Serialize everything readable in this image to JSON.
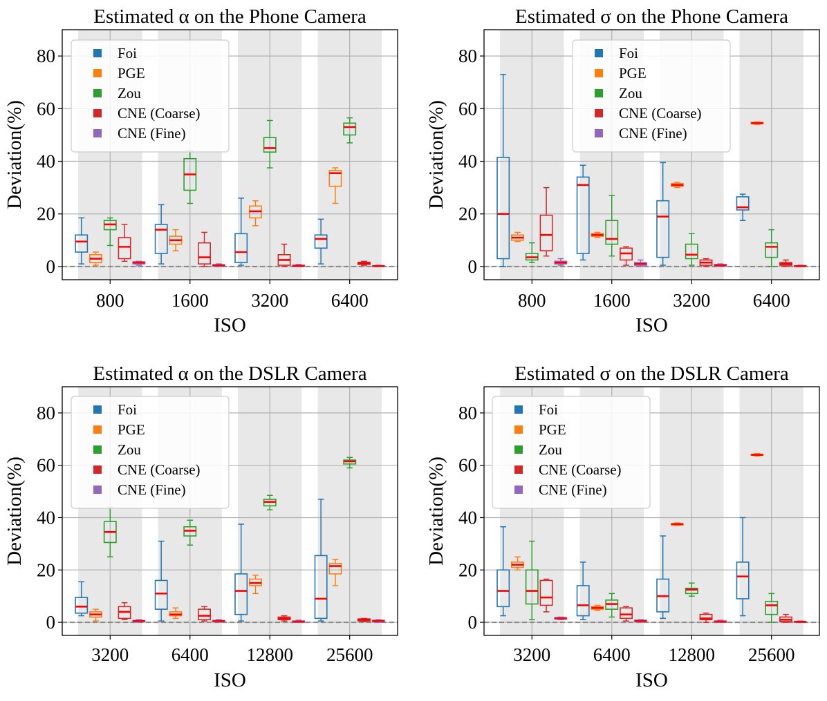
{
  "chart_data": {
    "type": "box",
    "ylabel": "Deviation(%)",
    "xlabel": "ISO",
    "legend_labels": [
      "Foi",
      "PGE",
      "Zou",
      "CNE (Coarse)",
      "CNE (Fine)"
    ],
    "series_colors": {
      "Foi": "#1f77b4",
      "PGE": "#ff7f0e",
      "Zou": "#2ca02c",
      "CNE (Coarse)": "#d62728",
      "CNE (Fine)": "#9467bd"
    },
    "median_color": "#ff0000",
    "shade_color": "#e8e8e8",
    "ylim": [
      -5,
      90
    ],
    "yticks": [
      0,
      20,
      40,
      60,
      80
    ],
    "panels": [
      {
        "title": "Estimated α on the Phone Camera",
        "categories": [
          "800",
          "1600",
          "3200",
          "6400"
        ],
        "legend_position": "upper-left-inset",
        "boxes": [
          [
            [
              1,
              5.5,
              9.5,
              12,
              18.5
            ],
            [
              0.5,
              1.5,
              3,
              4.5,
              5.5
            ],
            [
              8,
              14,
              16,
              17.5,
              18.5
            ],
            [
              2,
              3,
              7.5,
              11,
              16
            ],
            [
              0.5,
              1,
              1.5,
              1.8,
              2
            ]
          ],
          [
            [
              1,
              5,
              14,
              16,
              23.5
            ],
            [
              6,
              8.5,
              10,
              11.5,
              14
            ],
            [
              24,
              29,
              35,
              41,
              44
            ],
            [
              0,
              1,
              3.5,
              9,
              13
            ],
            [
              0,
              0.2,
              0.5,
              0.7,
              1
            ]
          ],
          [
            [
              0.5,
              1.5,
              5.5,
              12.5,
              26
            ],
            [
              15.5,
              18.5,
              21,
              23,
              25
            ],
            [
              37.5,
              43.5,
              45,
              49,
              55.5
            ],
            [
              0,
              0.5,
              2.5,
              4.5,
              8.5
            ],
            [
              0,
              0,
              0.3,
              0.5,
              0.8
            ]
          ],
          [
            [
              1,
              7,
              10.5,
              12,
              18
            ],
            [
              24,
              30.5,
              35.5,
              36.5,
              37.5
            ],
            [
              47,
              50,
              53,
              54.5,
              56.5
            ],
            [
              0.5,
              0.8,
              1.3,
              1.6,
              2
            ],
            [
              0,
              0,
              0.2,
              0.3,
              0.5
            ]
          ]
        ]
      },
      {
        "title": "Estimated σ on the Phone Camera",
        "categories": [
          "800",
          "1600",
          "3200",
          "6400"
        ],
        "legend_position": "upper-center-inset",
        "boxes": [
          [
            [
              0,
              3,
              20,
              41.5,
              73
            ],
            [
              9.5,
              10,
              11,
              12,
              13
            ],
            [
              1.5,
              2.5,
              3.5,
              5,
              9
            ],
            [
              4,
              6,
              12,
              19.5,
              30
            ],
            [
              0.5,
              1,
              1.5,
              2,
              3
            ]
          ],
          [
            [
              2.5,
              5,
              31,
              34,
              38.5
            ],
            [
              11,
              11.5,
              12,
              12.5,
              13
            ],
            [
              4,
              8.5,
              10.5,
              17.5,
              27
            ],
            [
              0.5,
              2.5,
              5,
              7,
              7.5
            ],
            [
              0,
              0.5,
              1,
              1.5,
              2.5
            ]
          ],
          [
            [
              0.5,
              3.5,
              19,
              25,
              39.5
            ],
            [
              30,
              30.5,
              31,
              31.5,
              32
            ],
            [
              0.5,
              3,
              4.5,
              8.5,
              12.5
            ],
            [
              0,
              0.5,
              1.5,
              2.5,
              3
            ],
            [
              0,
              0.2,
              0.5,
              0.8,
              1
            ]
          ],
          [
            [
              17.5,
              21.5,
              22.5,
              26.5,
              27.5
            ],
            [
              54,
              54.2,
              54.5,
              54.8,
              55
            ],
            [
              0,
              3.5,
              7.5,
              9,
              14
            ],
            [
              0,
              0.5,
              1,
              1.5,
              2.5
            ],
            [
              0,
              0,
              0.2,
              0.3,
              0.5
            ]
          ]
        ]
      },
      {
        "title": "Estimated α on the DSLR Camera",
        "categories": [
          "3200",
          "6400",
          "12800",
          "25600"
        ],
        "legend_position": "upper-left-inset",
        "boxes": [
          [
            [
              2.5,
              3.5,
              6,
              9.5,
              15.5
            ],
            [
              0.5,
              2,
              3,
              4,
              5
            ],
            [
              25,
              30.5,
              34.5,
              38.5,
              44
            ],
            [
              1,
              1.5,
              4,
              6,
              7.5
            ],
            [
              0,
              0.2,
              0.5,
              0.7,
              1
            ]
          ],
          [
            [
              0.5,
              5,
              11,
              16,
              31
            ],
            [
              1.5,
              2.5,
              3,
              4,
              5.5
            ],
            [
              29.5,
              33,
              35,
              36.5,
              39
            ],
            [
              0.5,
              1,
              2.5,
              5,
              6
            ],
            [
              0,
              0.2,
              0.5,
              0.7,
              1
            ]
          ],
          [
            [
              0.5,
              3,
              12,
              18.5,
              37.5
            ],
            [
              11,
              14,
              15,
              16.5,
              18
            ],
            [
              43,
              44.5,
              46,
              47,
              48.5
            ],
            [
              0.5,
              1,
              1.5,
              2,
              2.5
            ],
            [
              0,
              0,
              0.3,
              0.5,
              0.8
            ]
          ],
          [
            [
              0.5,
              1.5,
              9,
              25.5,
              47
            ],
            [
              14,
              18.5,
              21.5,
              22.5,
              24
            ],
            [
              59,
              60.5,
              61.5,
              62,
              63
            ],
            [
              0.3,
              0.5,
              1,
              1.3,
              1.5
            ],
            [
              0,
              0.2,
              0.5,
              0.8,
              1
            ]
          ]
        ]
      },
      {
        "title": "Estimated σ on the DSLR Camera",
        "categories": [
          "3200",
          "6400",
          "12800",
          "25600"
        ],
        "legend_position": "upper-left-inset",
        "boxes": [
          [
            [
              2.5,
              6,
              12,
              20,
              36.5
            ],
            [
              20,
              21,
              22,
              23,
              25
            ],
            [
              1,
              7,
              12,
              20,
              31
            ],
            [
              4,
              6.5,
              9.5,
              16,
              16.5
            ],
            [
              1,
              1.2,
              1.5,
              1.8,
              2
            ]
          ],
          [
            [
              1,
              2.5,
              6.5,
              14,
              23
            ],
            [
              4.5,
              5,
              5.5,
              6,
              6.5
            ],
            [
              2,
              5,
              7,
              8.5,
              11
            ],
            [
              0.5,
              1.5,
              3,
              5.5,
              6
            ],
            [
              0,
              0.3,
              0.5,
              0.8,
              1
            ]
          ],
          [
            [
              1.5,
              4,
              10,
              16.5,
              33
            ],
            [
              37,
              37.2,
              37.5,
              37.7,
              38
            ],
            [
              10,
              11,
              12.5,
              13,
              15
            ],
            [
              0,
              1,
              1.5,
              3,
              3.5
            ],
            [
              0,
              0,
              0.3,
              0.5,
              0.8
            ]
          ],
          [
            [
              2.5,
              9,
              17.5,
              23,
              40
            ],
            [
              63.5,
              63.8,
              64,
              64.2,
              64.5
            ],
            [
              0,
              3,
              6.5,
              8,
              11
            ],
            [
              0,
              0.3,
              1,
              2,
              3
            ],
            [
              0,
              0,
              0.2,
              0.3,
              0.5
            ]
          ]
        ]
      }
    ]
  }
}
